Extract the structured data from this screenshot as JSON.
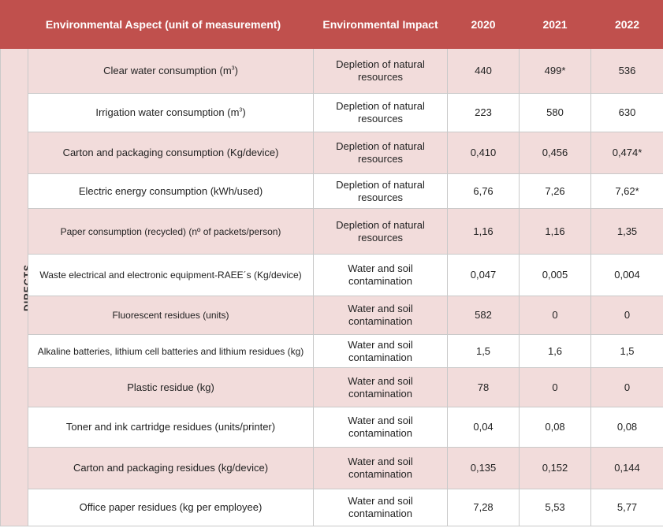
{
  "headers": {
    "aspect": "Environmental Aspect (unit of measurement)",
    "impact": "Environmental Impact",
    "y2020": "2020",
    "y2021": "2021",
    "y2022": "2022"
  },
  "group_label": "DIRECTS",
  "rows": [
    {
      "aspect": "Clear water consumption (m",
      "unit_sup": "3",
      "aspect_end": ")",
      "impact": "Depletion of natural resources",
      "y2020": "440",
      "y2021": "499*",
      "y2022": "536"
    },
    {
      "aspect": "Irrigation water consumption (m",
      "unit_sup": "3",
      "aspect_end": ")",
      "impact": "Depletion of natural resources",
      "y2020": "223",
      "y2021": "580",
      "y2022": "630"
    },
    {
      "aspect": "Carton and packaging consumption (Kg/device)",
      "impact": "Depletion of natural resources",
      "y2020": "0,410",
      "y2021": "0,456",
      "y2022": "0,474*"
    },
    {
      "aspect": "Electric energy consumption (kWh/used)",
      "impact": "Depletion of natural resources",
      "y2020": "6,76",
      "y2021": "7,26",
      "y2022": "7,62*"
    },
    {
      "aspect": "Paper consumption (recycled) (nº of packets/person)",
      "impact": "Depletion of natural resources",
      "y2020": "1,16",
      "y2021": "1,16",
      "y2022": "1,35"
    },
    {
      "aspect": "Waste electrical and electronic equipment-RAEE´s (Kg/device)",
      "impact": "Water and soil contamination",
      "y2020": "0,047",
      "y2021": "0,005",
      "y2022": "0,004"
    },
    {
      "aspect": "Fluorescent residues (units)",
      "impact": "Water and soil contamination",
      "y2020": "582",
      "y2021": "0",
      "y2022": "0"
    },
    {
      "aspect": "Alkaline batteries, lithium cell batteries and lithium residues (kg)",
      "impact": "Water and soil contamination",
      "y2020": "1,5",
      "y2021": "1,6",
      "y2022": "1,5"
    },
    {
      "aspect": "Plastic residue (kg)",
      "impact": "Water and soil contamination",
      "y2020": "78",
      "y2021": "0",
      "y2022": "0"
    },
    {
      "aspect": "Toner and ink cartridge residues (units/printer)",
      "impact": "Water and soil contamination",
      "y2020": "0,04",
      "y2021": "0,08",
      "y2022": "0,08"
    },
    {
      "aspect": "Carton and packaging residues (kg/device)",
      "impact": "Water and soil contamination",
      "y2020": "0,135",
      "y2021": "0,152",
      "y2022": "0,144"
    },
    {
      "aspect": "Office paper residues (kg per employee)",
      "impact": "Water and soil contamination",
      "y2020": "7,28",
      "y2021": "5,53",
      "y2022": "5,77"
    }
  ],
  "colors": {
    "header_bg": "#c0504d",
    "shade_row": "#f2dcdb",
    "plain_row": "#ffffff"
  }
}
